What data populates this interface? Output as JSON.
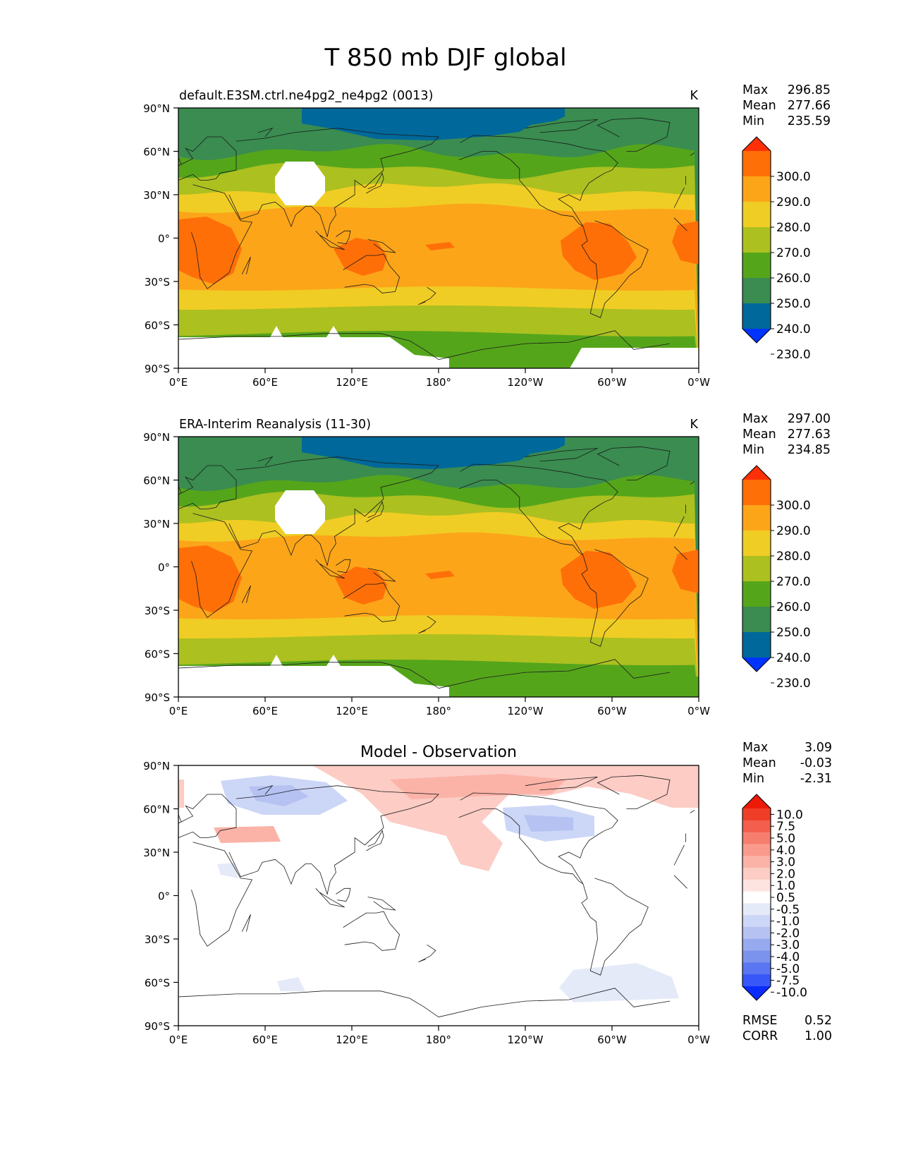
{
  "figure": {
    "title": "T 850 mb DJF global"
  },
  "axes": {
    "y_ticks": [
      "90°N",
      "60°N",
      "30°N",
      "0°",
      "30°S",
      "60°S",
      "90°S"
    ],
    "x_ticks": [
      "0°E",
      "60°E",
      "120°E",
      "180°",
      "120°W",
      "60°W",
      "0°W"
    ]
  },
  "panels": [
    {
      "id": "model",
      "left_title": "default.E3SM.ctrl.ne4pg2_ne4pg2 (0013)",
      "center_title": "",
      "units": "K",
      "stats_labels": [
        "Max",
        "Mean",
        "Min"
      ],
      "stats_values": [
        "296.85",
        "277.66",
        "235.59"
      ],
      "colorbar_ticks": [
        "300.0",
        "290.0",
        "280.0",
        "270.0",
        "260.0",
        "250.0",
        "240.0",
        "230.0"
      ],
      "field_type": "temperature"
    },
    {
      "id": "obs",
      "left_title": "ERA-Interim Reanalysis (11-30)",
      "center_title": "",
      "units": "K",
      "stats_labels": [
        "Max",
        "Mean",
        "Min"
      ],
      "stats_values": [
        "297.00",
        "277.63",
        "234.85"
      ],
      "colorbar_ticks": [
        "300.0",
        "290.0",
        "280.0",
        "270.0",
        "260.0",
        "250.0",
        "240.0",
        "230.0"
      ],
      "field_type": "temperature"
    },
    {
      "id": "diff",
      "left_title": "",
      "center_title": "Model - Observation",
      "units": "",
      "stats_labels": [
        "Max",
        "Mean",
        "Min"
      ],
      "stats_values": [
        "3.09",
        "-0.03",
        "-2.31"
      ],
      "colorbar_ticks": [
        "10.0",
        "7.5",
        "5.0",
        "4.0",
        "3.0",
        "2.0",
        "1.0",
        "0.5",
        "-0.5",
        "-1.0",
        "-2.0",
        "-3.0",
        "-4.0",
        "-5.0",
        "-7.5",
        "-10.0"
      ],
      "metrics_labels": [
        "RMSE",
        "CORR"
      ],
      "metrics_values": [
        "0.52",
        "1.00"
      ],
      "field_type": "difference"
    }
  ],
  "colors": {
    "temperature_levels": [
      "#0033ff",
      "#00689a",
      "#3a8c50",
      "#55a51b",
      "#acc020",
      "#f0cd24",
      "#fca519",
      "#ff6f08",
      "#ff3008"
    ],
    "difference_levels": [
      "#0a2cff",
      "#3857f8",
      "#5a76f2",
      "#7c93ee",
      "#98aaef",
      "#b5c2f2",
      "#ccd6f6",
      "#e4eaf8",
      "#ffffff",
      "#fde4e0",
      "#fcccc5",
      "#fbb3a8",
      "#f99a8c",
      "#f67e6e",
      "#f35e4d",
      "#f03d28",
      "#ee1a08"
    ],
    "land_outline": "#1a1a1a"
  }
}
